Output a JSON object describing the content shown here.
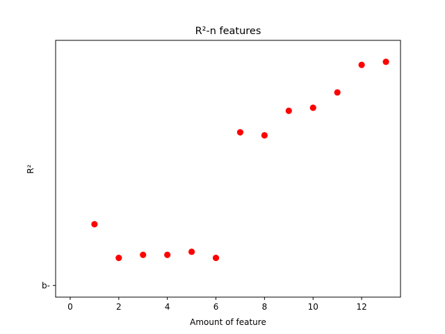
{
  "chart_data": {
    "type": "scatter",
    "title": "R²-n features",
    "xlabel": "Amount of feature",
    "ylabel": "R²",
    "x": [
      1,
      2,
      3,
      4,
      5,
      6,
      7,
      8,
      9,
      10,
      11,
      12,
      13
    ],
    "y": [
      0.2,
      0.09,
      0.1,
      0.1,
      0.11,
      0.09,
      0.5,
      0.49,
      0.57,
      0.58,
      0.63,
      0.72,
      0.73
    ],
    "xlim": [
      -0.6,
      13.6
    ],
    "ylim": [
      -0.038,
      0.8
    ],
    "xticks": [
      0,
      2,
      4,
      6,
      8,
      10,
      12
    ],
    "xtick_labels": [
      "0",
      "2",
      "4",
      "6",
      "8",
      "10",
      "12"
    ],
    "yticks": [
      0
    ],
    "ytick_labels": [
      "b-"
    ],
    "marker_color": "#ff0000",
    "grid": false,
    "legend": false
  }
}
